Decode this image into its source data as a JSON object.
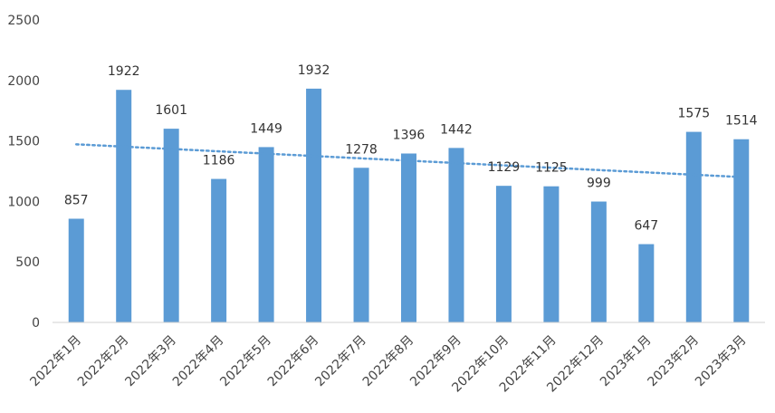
{
  "chart_data": {
    "type": "bar",
    "categories": [
      "2022年1月",
      "2022年2月",
      "2022年3月",
      "2022年4月",
      "2022年5月",
      "2022年6月",
      "2022年7月",
      "2022年8月",
      "2022年9月",
      "2022年10月",
      "2022年11月",
      "2022年12月",
      "2023年1月",
      "2023年2月",
      "2023年3月"
    ],
    "values": [
      857,
      1922,
      1601,
      1186,
      1449,
      1932,
      1278,
      1396,
      1442,
      1129,
      1125,
      999,
      647,
      1575,
      1514
    ],
    "ylim": [
      0,
      2500
    ],
    "yticks": [
      0,
      500,
      1000,
      1500,
      2000,
      2500
    ],
    "trendline": {
      "type": "linear",
      "style": "dotted"
    },
    "grid": false,
    "legend": "none",
    "bar_color": "#5B9BD5",
    "trend_color": "#5B9BD5"
  }
}
